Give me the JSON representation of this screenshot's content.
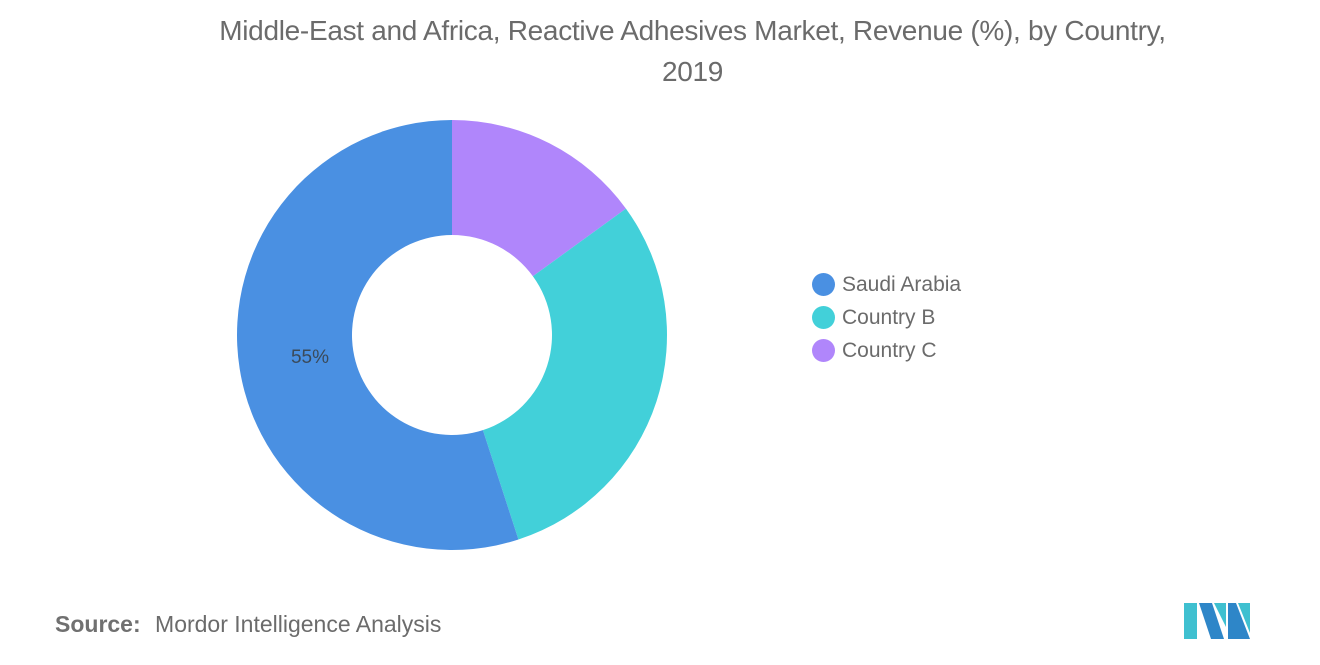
{
  "header": {
    "title_line1": "Middle-East and Africa, Reactive Adhesives Market, Revenue (%), by Country,",
    "title_line2": "2019"
  },
  "legend": {
    "items": [
      {
        "label": "Saudi Arabia",
        "color": "#4a90e2"
      },
      {
        "label": "Country B",
        "color": "#42d0d9"
      },
      {
        "label": "Country C",
        "color": "#b086fb"
      }
    ]
  },
  "footer": {
    "source_label": "Source:",
    "source_text": "Mordor Intelligence Analysis",
    "logo_icon": "mordor-intelligence-logo-icon"
  },
  "chart_data": {
    "type": "pie",
    "variant": "donut",
    "title": "Middle-East and Africa, Reactive Adhesives Market, Revenue (%), by Country, 2019",
    "categories": [
      "Saudi Arabia",
      "Country B",
      "Country C"
    ],
    "values": [
      55,
      30,
      15
    ],
    "colors": [
      "#4a90e2",
      "#42d0d9",
      "#b086fb"
    ],
    "data_labels": [
      {
        "category": "Saudi Arabia",
        "text": "55%"
      }
    ],
    "legend_position": "right",
    "unit": "%",
    "source": "Mordor Intelligence Analysis"
  }
}
